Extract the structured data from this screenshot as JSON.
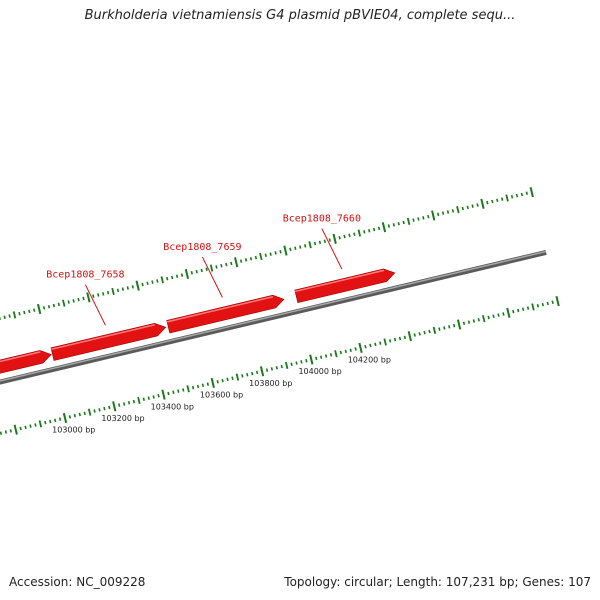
{
  "title": "Burkholderia vietnamiensis G4 plasmid pBVIE04, complete sequ...",
  "footer": {
    "accession": "Accession: NC_009228",
    "summary": "Topology: circular; Length: 107,231 bp; Genes: 107"
  },
  "colors": {
    "gene": "#e31212",
    "gene_label": "#d41010",
    "tick": "#1a7a1a",
    "backbone": "#777777"
  },
  "genes": [
    {
      "name": "",
      "start": 102700,
      "end": 103005
    },
    {
      "name": "Bcep1808_7658",
      "start": 103010,
      "end": 103470
    },
    {
      "name": "Bcep1808_7659",
      "start": 103480,
      "end": 103950
    },
    {
      "name": "Bcep1808_7660",
      "start": 104000,
      "end": 104400
    }
  ],
  "scale_ticks": [
    {
      "bp": 103000,
      "label": "103000 bp"
    },
    {
      "bp": 103200,
      "label": "103200 bp"
    },
    {
      "bp": 103400,
      "label": "103400 bp"
    },
    {
      "bp": 103600,
      "label": "103600 bp"
    },
    {
      "bp": 103800,
      "label": "103800 bp"
    },
    {
      "bp": 104000,
      "label": "104000 bp"
    },
    {
      "bp": 104200,
      "label": "104200 bp"
    }
  ]
}
